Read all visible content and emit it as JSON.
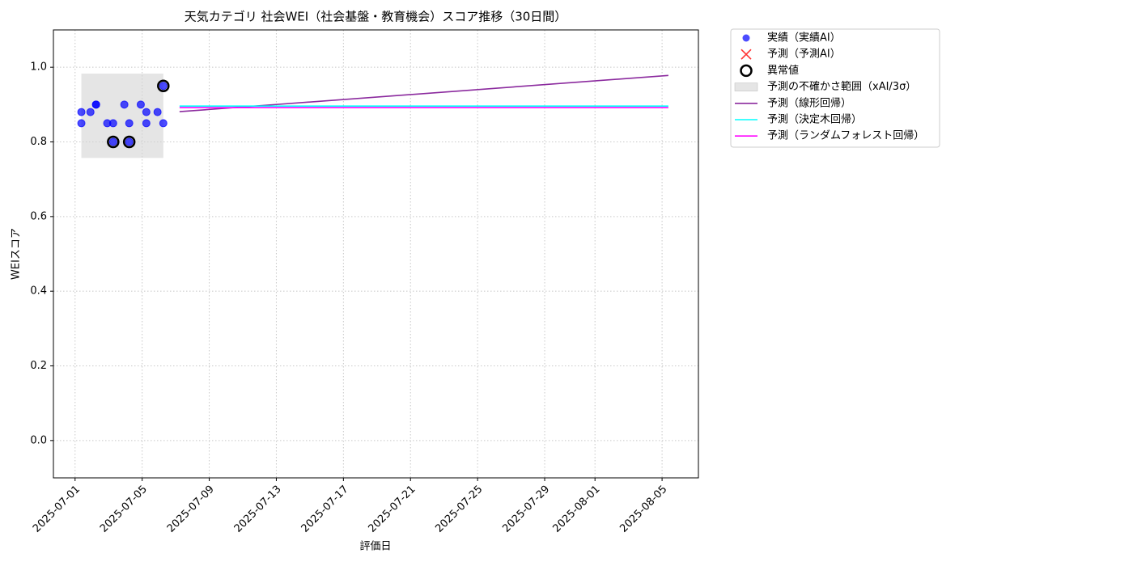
{
  "chart_data": {
    "type": "scatter",
    "title": "天気カテゴリ 社会WEI（社会基盤・教育機会）スコア推移（30日間）",
    "xlabel": "評価日",
    "ylabel": "WEIスコア",
    "xlim": [
      "2025-06-29T17:00",
      "2025-08-07T04:00"
    ],
    "ylim": [
      -0.1,
      1.1
    ],
    "xticks": [
      "2025-07-01",
      "2025-07-05",
      "2025-07-09",
      "2025-07-13",
      "2025-07-17",
      "2025-07-21",
      "2025-07-25",
      "2025-07-29",
      "2025-08-01",
      "2025-08-05"
    ],
    "yticks": [
      {
        "value": 0,
        "label": "0.0"
      },
      0.2,
      0.4,
      0.6,
      0.8,
      {
        "value": 1,
        "label": "1.0"
      }
    ],
    "grid": true,
    "legend": "outside-upper-right",
    "series": [
      {
        "name": "実績（実績AI）",
        "kind": "scatter",
        "color": "#0000ff",
        "x": [
          "2025-07-01T09:00",
          "2025-07-01T09:00",
          "2025-07-01T22:00",
          "2025-07-02T06:00",
          "2025-07-02T06:00",
          "2025-07-02T22:00",
          "2025-07-03T06:30",
          "2025-07-03T06:30",
          "2025-07-03T22:30",
          "2025-07-04T05:30",
          "2025-07-04T05:30",
          "2025-07-04T22:00",
          "2025-07-05T06:00",
          "2025-07-05T06:00",
          "2025-07-05T22:00",
          "2025-07-06T06:15",
          "2025-07-06T06:15"
        ],
        "values": [
          0.88,
          0.85,
          0.88,
          0.9,
          0.9,
          0.85,
          0.85,
          0.8,
          0.9,
          0.85,
          0.8,
          0.9,
          0.88,
          0.85,
          0.88,
          0.85,
          0.95
        ]
      },
      {
        "name": "予測（予測AI）",
        "kind": "cross",
        "color": "#ff0000",
        "x": [],
        "values": []
      },
      {
        "name": "異常値",
        "kind": "outlier",
        "color": "#000000",
        "x": [
          "2025-07-03T06:30",
          "2025-07-04T05:30",
          "2025-07-06T06:15"
        ],
        "values": [
          0.8,
          0.8,
          0.95
        ]
      },
      {
        "name": "予測の不確かさ範囲（xAI/3σ）",
        "kind": "band",
        "color": "#d3d3d3",
        "x": [
          "2025-07-01T09:00",
          "2025-07-06T06:15"
        ],
        "lower": [
          0.757,
          0.757
        ],
        "upper": [
          0.983,
          0.983
        ]
      },
      {
        "name": "予測（線形回帰）",
        "kind": "line",
        "color": "#8b2a9e",
        "x": [
          "2025-07-07T05:30",
          "2025-08-05T09:00"
        ],
        "values": [
          0.881,
          0.978
        ]
      },
      {
        "name": "予測（決定木回帰）",
        "kind": "line",
        "color": "#00ffff",
        "x": [
          "2025-07-07T05:30",
          "2025-08-05T09:00"
        ],
        "values": [
          0.896,
          0.896
        ]
      },
      {
        "name": "予測（ランダムフォレスト回帰）",
        "kind": "line",
        "color": "#ff00ff",
        "x": [
          "2025-07-07T05:30",
          "2025-08-05T09:00"
        ],
        "values": [
          0.892,
          0.892
        ]
      }
    ]
  }
}
